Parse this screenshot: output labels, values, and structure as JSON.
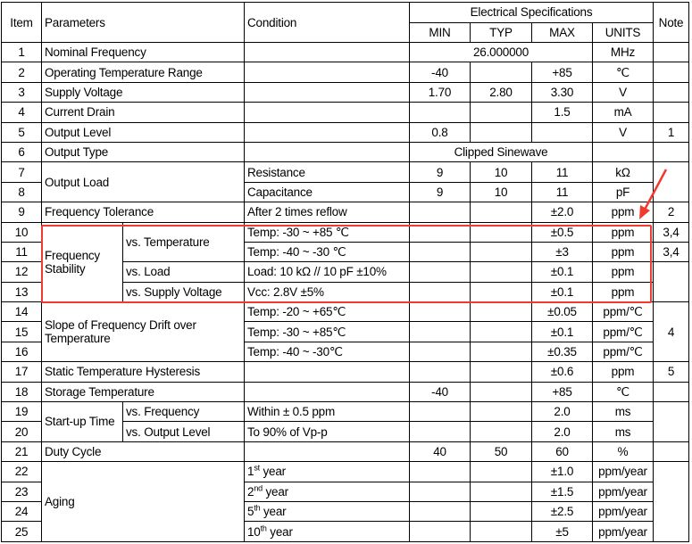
{
  "header": {
    "item": "Item",
    "parameters": "Parameters",
    "condition": "Condition",
    "elec": "Electrical Specifications",
    "min": "MIN",
    "typ": "TYP",
    "max": "MAX",
    "units": "UNITS",
    "note": "Note"
  },
  "rows": [
    {
      "item": "1",
      "param": "Nominal Frequency",
      "value": "26.000000",
      "units": "MHz"
    },
    {
      "item": "2",
      "param": "Operating Temperature Range",
      "min": "-40",
      "max": "+85",
      "units": "℃"
    },
    {
      "item": "3",
      "param": "Supply Voltage",
      "min": "1.70",
      "typ": "2.80",
      "max": "3.30",
      "units": "V"
    },
    {
      "item": "4",
      "param": "Current Drain",
      "max": "1.5",
      "units": "mA"
    },
    {
      "item": "5",
      "param": "Output Level",
      "min": "0.8",
      "units": "V",
      "note": "1"
    },
    {
      "item": "6",
      "param": "Output Type",
      "value": "Clipped Sinewave"
    },
    {
      "item": "7",
      "param": "Output Load",
      "cond": "Resistance",
      "min": "9",
      "typ": "10",
      "max": "11",
      "units": "kΩ"
    },
    {
      "item": "8",
      "cond": "Capacitance",
      "min": "9",
      "typ": "10",
      "max": "11",
      "units": "pF"
    },
    {
      "item": "9",
      "param": "Frequency Tolerance",
      "cond": "After 2 times reflow",
      "max": "±2.0",
      "units": "ppm",
      "note": "2"
    },
    {
      "item": "10",
      "param": "Frequency Stability",
      "sub": "vs. Temperature",
      "cond": "Temp: -30 ~ +85 ℃",
      "max": "±0.5",
      "units": "ppm",
      "note": "3,4"
    },
    {
      "item": "11",
      "cond": "Temp: -40 ~ -30 ℃",
      "max": "±3",
      "units": "ppm",
      "note": "3,4"
    },
    {
      "item": "12",
      "sub": "vs. Load",
      "cond": "Load: 10 kΩ // 10 pF ±10%",
      "max": "±0.1",
      "units": "ppm"
    },
    {
      "item": "13",
      "sub": "vs. Supply Voltage",
      "cond": "Vcc: 2.8V ±5%",
      "max": "±0.1",
      "units": "ppm"
    },
    {
      "item": "14",
      "param": "Slope of Frequency Drift over Temperature",
      "cond": "Temp: -20 ~ +65℃",
      "max": "±0.05",
      "units": "ppm/℃",
      "note": "4"
    },
    {
      "item": "15",
      "cond": "Temp: -30 ~ +85℃",
      "max": "±0.1",
      "units": "ppm/℃"
    },
    {
      "item": "16",
      "cond": "Temp: -40 ~ -30℃",
      "max": "±0.35",
      "units": "ppm/℃"
    },
    {
      "item": "17",
      "param": "Static Temperature Hysteresis",
      "max": "±0.6",
      "units": "ppm",
      "note": "5"
    },
    {
      "item": "18",
      "param": "Storage Temperature",
      "min": "-40",
      "max": "+85",
      "units": "℃"
    },
    {
      "item": "19",
      "param": "Start-up Time",
      "sub": "vs. Frequency",
      "cond": "Within ± 0.5 ppm",
      "max": "2.0",
      "units": "ms"
    },
    {
      "item": "20",
      "sub": "vs. Output Level",
      "cond": "To 90% of Vp-p",
      "max": "2.0",
      "units": "ms"
    },
    {
      "item": "21",
      "param": "Duty Cycle",
      "min": "40",
      "typ": "50",
      "max": "60",
      "units": "%"
    },
    {
      "item": "22",
      "param": "Aging",
      "cond_num": "1",
      "cond_sup": "st",
      "cond_text": " year",
      "max": "±1.0",
      "units": "ppm/year"
    },
    {
      "item": "23",
      "cond_num": "2",
      "cond_sup": "nd",
      "cond_text": " year",
      "max": "±1.5",
      "units": "ppm/year"
    },
    {
      "item": "24",
      "cond_num": "5",
      "cond_sup": "th",
      "cond_text": " year",
      "max": "±2.5",
      "units": "ppm/year"
    },
    {
      "item": "25",
      "cond_num": "10",
      "cond_sup": "th",
      "cond_text": " year",
      "max": "±5",
      "units": "ppm/year"
    }
  ],
  "highlight": {
    "color": "#f03a2e"
  }
}
